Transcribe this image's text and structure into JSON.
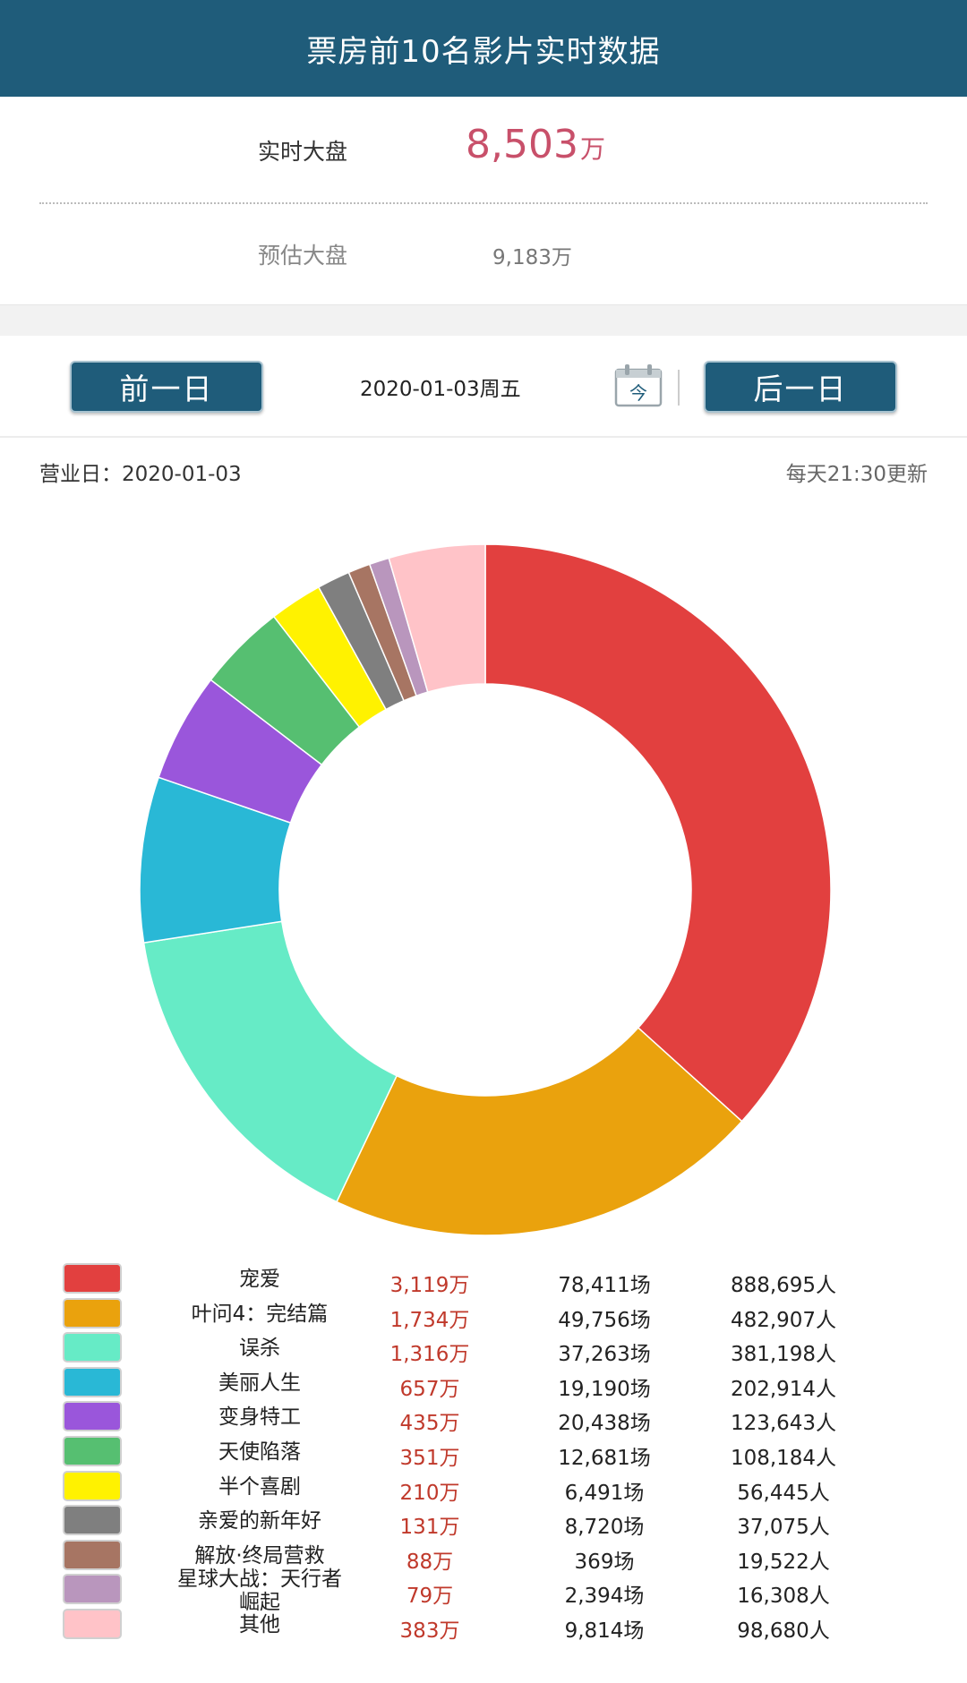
{
  "header": {
    "title": "票房前10名影片实时数据"
  },
  "summary": {
    "realtime_label": "实时大盘",
    "realtime_value": "8,503",
    "realtime_unit": "万",
    "estimate_label": "预估大盘",
    "estimate_value": "9,183万"
  },
  "nav": {
    "prev_label": "前一日",
    "date": "2020-01-03周五",
    "calendar_icon_text": "今",
    "next_label": "后一日"
  },
  "info": {
    "business_day": "营业日：2020-01-03",
    "update_note": "每天21:30更新"
  },
  "chart_data": {
    "type": "pie",
    "donut": true,
    "categories": [
      "宠爱",
      "叶问4：完结篇",
      "误杀",
      "美丽人生",
      "变身特工",
      "天使陷落",
      "半个喜剧",
      "亲爱的新年好",
      "解放·终局营救",
      "星球大战：天行者崛起",
      "其他"
    ],
    "values": [
      3119,
      1734,
      1316,
      657,
      435,
      351,
      210,
      131,
      88,
      79,
      383
    ],
    "unit": "万",
    "colors": [
      "#e2403f",
      "#eaa20d",
      "#66ebc6",
      "#29b8d6",
      "#9a56db",
      "#56bf71",
      "#fff200",
      "#7f7f7f",
      "#a77563",
      "#b996bd",
      "#ffc3c8"
    ]
  },
  "legend": [
    {
      "name": "宠爱",
      "box": "3,119万",
      "shows": "78,411场",
      "people": "888,695人"
    },
    {
      "name": "叶问4：完结篇",
      "box": "1,734万",
      "shows": "49,756场",
      "people": "482,907人"
    },
    {
      "name": "误杀",
      "box": "1,316万",
      "shows": "37,263场",
      "people": "381,198人"
    },
    {
      "name": "美丽人生",
      "box": "657万",
      "shows": "19,190场",
      "people": "202,914人"
    },
    {
      "name": "变身特工",
      "box": "435万",
      "shows": "20,438场",
      "people": "123,643人"
    },
    {
      "name": "天使陷落",
      "box": "351万",
      "shows": "12,681场",
      "people": "108,184人"
    },
    {
      "name": "半个喜剧",
      "box": "210万",
      "shows": "6,491场",
      "people": "56,445人"
    },
    {
      "name": "亲爱的新年好",
      "box": "131万",
      "shows": "8,720场",
      "people": "37,075人"
    },
    {
      "name": "解放·终局营救",
      "box": "88万",
      "shows": "369场",
      "people": "19,522人"
    },
    {
      "name": "星球大战：天行者崛起",
      "box": "79万",
      "shows": "2,394场",
      "people": "16,308人"
    },
    {
      "name": "其他",
      "box": "383万",
      "shows": "9,814场",
      "people": "98,680人"
    }
  ]
}
